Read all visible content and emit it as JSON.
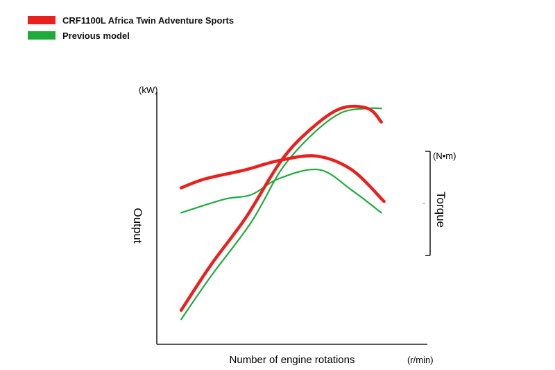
{
  "chart_data": {
    "type": "line",
    "x_label": "Number of engine rotations",
    "x_unit": "(r/min)",
    "y_left_label": "Output",
    "y_left_unit": "(kW)",
    "y_right_label": "Torque",
    "y_right_unit": "(N•m)",
    "grid": false,
    "legend_position": "top-left",
    "x_range": [
      0,
      100
    ],
    "y_range": [
      0,
      100
    ],
    "series": [
      {
        "name": "CRF1100L Africa Twin Adventure Sports",
        "color": "#e8211f",
        "role": "output",
        "points": [
          [
            9,
            15
          ],
          [
            20,
            35
          ],
          [
            33,
            56
          ],
          [
            46,
            81
          ],
          [
            57,
            95
          ],
          [
            68,
            104
          ],
          [
            78,
            104
          ],
          [
            83,
            98
          ]
        ]
      },
      {
        "name": "CRF1100L Africa Twin Adventure Sports",
        "color": "#e8211f",
        "role": "torque",
        "points": [
          [
            9,
            69
          ],
          [
            18,
            73
          ],
          [
            33,
            77
          ],
          [
            45,
            81
          ],
          [
            59,
            83
          ],
          [
            72,
            77
          ],
          [
            84,
            63
          ]
        ]
      },
      {
        "name": "Previous model",
        "color": "#1faa3c",
        "role": "output",
        "points": [
          [
            9,
            11
          ],
          [
            20,
            30
          ],
          [
            35,
            54
          ],
          [
            46,
            77
          ],
          [
            57,
            92
          ],
          [
            68,
            102
          ],
          [
            78,
            104
          ],
          [
            83,
            104
          ]
        ]
      },
      {
        "name": "Previous model",
        "color": "#1faa3c",
        "role": "torque",
        "points": [
          [
            9,
            58
          ],
          [
            25,
            64
          ],
          [
            35,
            66
          ],
          [
            45,
            73
          ],
          [
            60,
            77
          ],
          [
            72,
            68
          ],
          [
            83,
            58
          ]
        ]
      }
    ]
  },
  "legend": {
    "items": [
      {
        "label": "CRF1100L Africa Twin Adventure Sports",
        "color": "#e8211f"
      },
      {
        "label": "Previous model",
        "color": "#1faa3c"
      }
    ]
  }
}
